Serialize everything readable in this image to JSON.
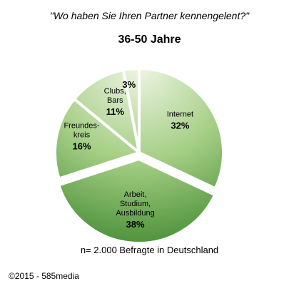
{
  "chart_data": {
    "type": "pie",
    "title": "\"Wo haben Sie Ihren Partner kennengelent?\"",
    "subtitle": "36-50 Jahre",
    "slices": [
      {
        "label_lines": [
          "Internet"
        ],
        "value": 32,
        "value_label": "32%"
      },
      {
        "label_lines": [
          "Arbeit,",
          "Studium,",
          "Ausbildung"
        ],
        "value": 38,
        "value_label": "38%"
      },
      {
        "label_lines": [
          "Freundes-",
          "kreis"
        ],
        "value": 16,
        "value_label": "16%"
      },
      {
        "label_lines": [
          "Clubs,",
          "Bars"
        ],
        "value": 11,
        "value_label": "11%"
      },
      {
        "label_lines": [],
        "value": 3,
        "value_label": "3%"
      }
    ],
    "colors": {
      "light": "#eef5e4",
      "dark": "#2f7d1f"
    },
    "legend": "none"
  },
  "footer": {
    "note": "n= 2.000  Befragte in Deutschland",
    "copyright": "©2015 - 585media"
  }
}
